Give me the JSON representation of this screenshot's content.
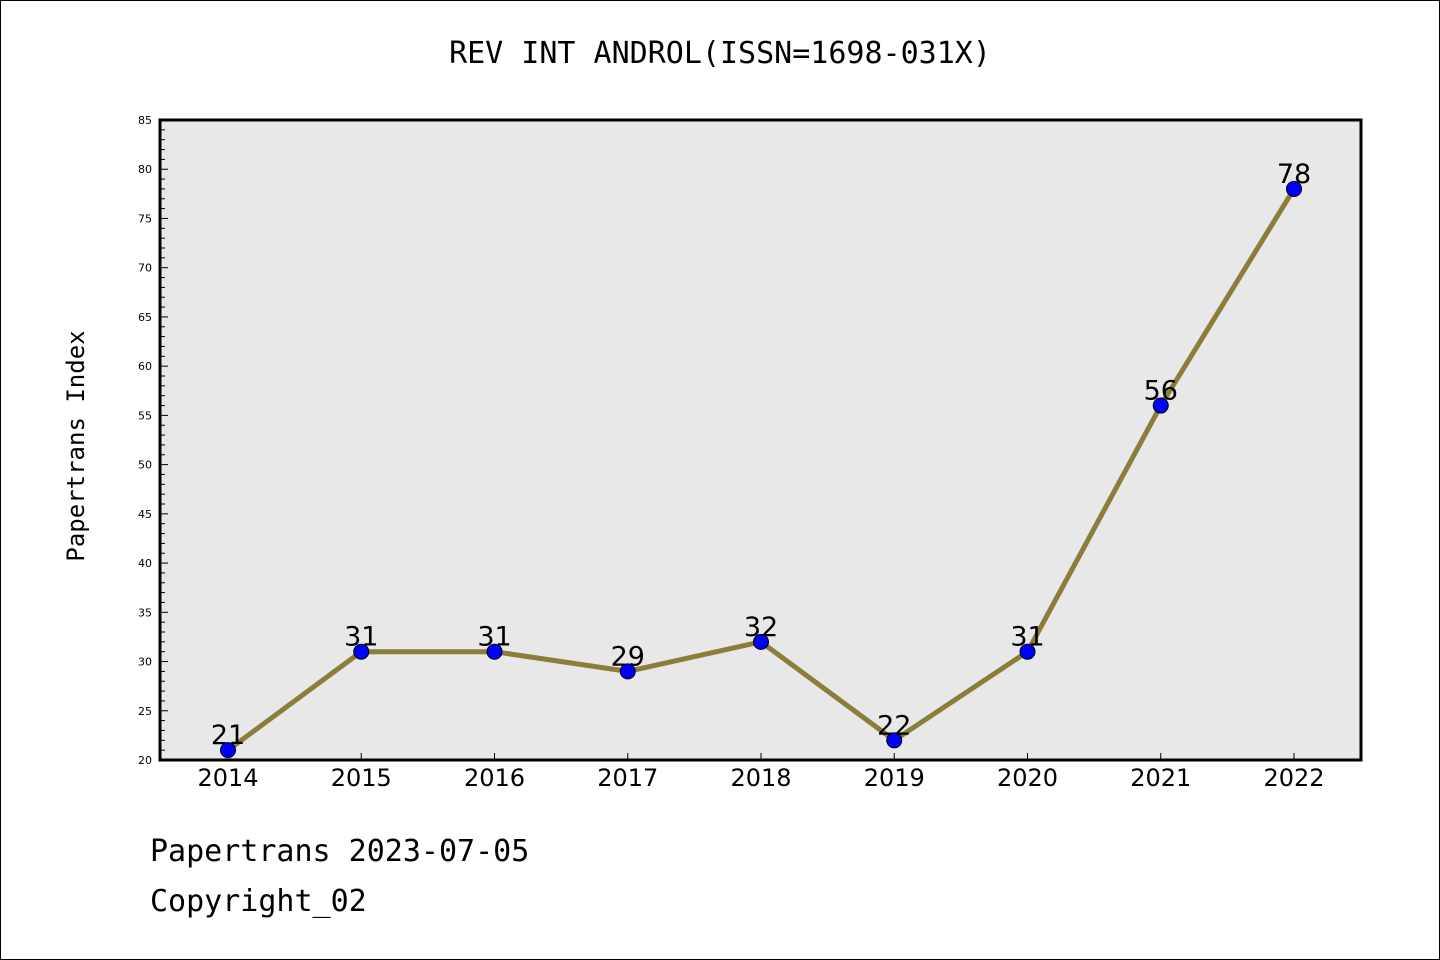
{
  "chart_data": {
    "type": "line",
    "title": "REV INT ANDROL(ISSN=1698-031X)",
    "xlabel": "",
    "ylabel": "Papertrans Index",
    "x": [
      "2014",
      "2015",
      "2016",
      "2017",
      "2018",
      "2019",
      "2020",
      "2021",
      "2022"
    ],
    "series": [
      {
        "values": [
          21,
          31,
          31,
          29,
          32,
          22,
          31,
          56,
          78
        ]
      }
    ],
    "data_labels": [
      "21",
      "31",
      "31",
      "29",
      "32",
      "22",
      "31",
      "56",
      "78"
    ],
    "ylim": [
      20,
      85
    ],
    "yticks": [
      "20",
      "25",
      "30",
      "35",
      "40",
      "45",
      "50",
      "55",
      "60",
      "65",
      "70",
      "75",
      "80",
      "85"
    ],
    "grid": false,
    "legend": "none",
    "colors": {
      "line": "#8b7d3a",
      "marker": "#0000ff",
      "plot_background": "#e8e8e8"
    }
  },
  "footer": {
    "date_line": "Papertrans 2023-07-05",
    "copyright_line": "Copyright_02"
  }
}
